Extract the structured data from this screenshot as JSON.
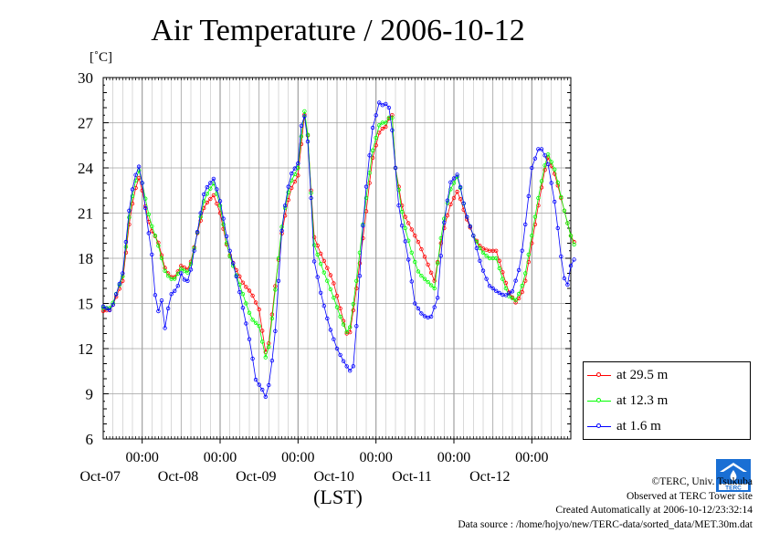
{
  "title": "Air Temperature / 2006-10-12",
  "unit_label": "[˚C]",
  "x_axis_title": "(LST)",
  "footer": {
    "copyright": "©TERC, Univ. Tsukuba",
    "observed": "Observed at TERC Tower site",
    "created": "Created Automatically at 2006-10-12/23:32:14",
    "source": "Data source : /home/hojyo/new/TERC-data/sorted_data/MET.30m.dat"
  },
  "chart_data": {
    "type": "line",
    "title": "Air Temperature / 2006-10-12",
    "ylabel": "[˚C]",
    "xlabel": "(LST)",
    "ylim": [
      6,
      30
    ],
    "yticks": [
      6,
      9,
      12,
      15,
      18,
      21,
      24,
      27,
      30
    ],
    "x_unit": "days since 2006-10-06 00:00 LST",
    "xlim": [
      0.5,
      6.5
    ],
    "xticks": [
      {
        "x": 1,
        "time": "00:00",
        "date": "Oct-07"
      },
      {
        "x": 2,
        "time": "00:00",
        "date": "Oct-08"
      },
      {
        "x": 3,
        "time": "00:00",
        "date": "Oct-09"
      },
      {
        "x": 4,
        "time": "00:00",
        "date": "Oct-10"
      },
      {
        "x": 5,
        "time": "00:00",
        "date": "Oct-11"
      },
      {
        "x": 6,
        "time": "00:00",
        "date": "Oct-12"
      }
    ],
    "grid": true,
    "legend_position": "bottom-right outside",
    "series": [
      {
        "name": "at 29.5 m",
        "color": "#ff0000",
        "points": [
          [
            0.5,
            14.5
          ],
          [
            0.6,
            14.6
          ],
          [
            0.75,
            16.5
          ],
          [
            0.85,
            21
          ],
          [
            0.95,
            23.5
          ],
          [
            1.0,
            22.5
          ],
          [
            1.1,
            20
          ],
          [
            1.2,
            19.2
          ],
          [
            1.3,
            17.2
          ],
          [
            1.4,
            16.6
          ],
          [
            1.5,
            17.5
          ],
          [
            1.6,
            17.2
          ],
          [
            1.7,
            19.5
          ],
          [
            1.8,
            21.5
          ],
          [
            1.92,
            22.2
          ],
          [
            2.0,
            21
          ],
          [
            2.1,
            18.5
          ],
          [
            2.2,
            17.3
          ],
          [
            2.3,
            16.3
          ],
          [
            2.4,
            15.7
          ],
          [
            2.5,
            14.6
          ],
          [
            2.6,
            11.2
          ],
          [
            2.7,
            15.8
          ],
          [
            2.8,
            20
          ],
          [
            2.9,
            22.5
          ],
          [
            3.0,
            23.5
          ],
          [
            3.05,
            26
          ],
          [
            3.1,
            28.3
          ],
          [
            3.15,
            24
          ],
          [
            3.2,
            19.5
          ],
          [
            3.3,
            18.2
          ],
          [
            3.45,
            16.5
          ],
          [
            3.55,
            14.5
          ],
          [
            3.65,
            12.5
          ],
          [
            3.75,
            16
          ],
          [
            3.85,
            20
          ],
          [
            3.95,
            24.5
          ],
          [
            4.05,
            26.5
          ],
          [
            4.15,
            26.8
          ],
          [
            4.2,
            28.2
          ],
          [
            4.25,
            24
          ],
          [
            4.35,
            21
          ],
          [
            4.45,
            20
          ],
          [
            4.55,
            19
          ],
          [
            4.65,
            17.8
          ],
          [
            4.75,
            16.5
          ],
          [
            4.85,
            19.5
          ],
          [
            4.95,
            21.5
          ],
          [
            5.05,
            22.5
          ],
          [
            5.15,
            20.8
          ],
          [
            5.25,
            19.5
          ],
          [
            5.35,
            18.7
          ],
          [
            5.45,
            18.5
          ],
          [
            5.55,
            18.5
          ],
          [
            5.6,
            17.5
          ],
          [
            5.7,
            15.8
          ],
          [
            5.8,
            15
          ],
          [
            5.9,
            16
          ],
          [
            6.0,
            19
          ],
          [
            6.1,
            22
          ],
          [
            6.2,
            24.8
          ],
          [
            6.3,
            23.5
          ],
          [
            6.4,
            21.5
          ],
          [
            6.5,
            19.5
          ],
          [
            6.55,
            19
          ]
        ]
      },
      {
        "name": "at 12.3 m",
        "color": "#00ff00",
        "points": [
          [
            0.5,
            14.7
          ],
          [
            0.6,
            14.7
          ],
          [
            0.75,
            16.8
          ],
          [
            0.85,
            21.5
          ],
          [
            0.95,
            24
          ],
          [
            1.0,
            23
          ],
          [
            1.1,
            20.5
          ],
          [
            1.2,
            19
          ],
          [
            1.3,
            17
          ],
          [
            1.4,
            16.5
          ],
          [
            1.5,
            17.3
          ],
          [
            1.6,
            17
          ],
          [
            1.7,
            19.5
          ],
          [
            1.8,
            22
          ],
          [
            1.92,
            23
          ],
          [
            2.0,
            21.5
          ],
          [
            2.1,
            18.5
          ],
          [
            2.2,
            17
          ],
          [
            2.3,
            15.5
          ],
          [
            2.4,
            14
          ],
          [
            2.5,
            13.5
          ],
          [
            2.6,
            11
          ],
          [
            2.7,
            15.5
          ],
          [
            2.8,
            20.5
          ],
          [
            2.9,
            23
          ],
          [
            3.0,
            24
          ],
          [
            3.05,
            26.5
          ],
          [
            3.1,
            28.4
          ],
          [
            3.15,
            24
          ],
          [
            3.2,
            19
          ],
          [
            3.3,
            17.5
          ],
          [
            3.45,
            15.5
          ],
          [
            3.55,
            14
          ],
          [
            3.65,
            12.8
          ],
          [
            3.75,
            16.5
          ],
          [
            3.85,
            21
          ],
          [
            3.95,
            25
          ],
          [
            4.05,
            27
          ],
          [
            4.15,
            27
          ],
          [
            4.2,
            28
          ],
          [
            4.25,
            24
          ],
          [
            4.35,
            20.5
          ],
          [
            4.45,
            18.5
          ],
          [
            4.55,
            17
          ],
          [
            4.65,
            16.5
          ],
          [
            4.75,
            16
          ],
          [
            4.85,
            20
          ],
          [
            4.95,
            22.5
          ],
          [
            5.05,
            23.5
          ],
          [
            5.15,
            21
          ],
          [
            5.25,
            19.5
          ],
          [
            5.35,
            18.5
          ],
          [
            5.45,
            18
          ],
          [
            5.55,
            18
          ],
          [
            5.6,
            17
          ],
          [
            5.7,
            15.5
          ],
          [
            5.8,
            15.2
          ],
          [
            5.9,
            16.5
          ],
          [
            6.0,
            19.5
          ],
          [
            6.1,
            22.5
          ],
          [
            6.2,
            25
          ],
          [
            6.3,
            23.8
          ],
          [
            6.4,
            21.5
          ],
          [
            6.5,
            19.5
          ],
          [
            6.55,
            18.8
          ]
        ]
      },
      {
        "name": "at 1.6 m",
        "color": "#0000ff",
        "points": [
          [
            0.5,
            14.8
          ],
          [
            0.6,
            14.5
          ],
          [
            0.75,
            17
          ],
          [
            0.85,
            22
          ],
          [
            0.95,
            24.3
          ],
          [
            1.0,
            23
          ],
          [
            1.05,
            21
          ],
          [
            1.1,
            19
          ],
          [
            1.15,
            17.5
          ],
          [
            1.18,
            14
          ],
          [
            1.25,
            15.2
          ],
          [
            1.3,
            13
          ],
          [
            1.35,
            15.5
          ],
          [
            1.45,
            16
          ],
          [
            1.5,
            17
          ],
          [
            1.55,
            16.5
          ],
          [
            1.6,
            16.5
          ],
          [
            1.7,
            19.5
          ],
          [
            1.8,
            22.5
          ],
          [
            1.92,
            23.3
          ],
          [
            2.0,
            21.8
          ],
          [
            2.1,
            19
          ],
          [
            2.2,
            17
          ],
          [
            2.3,
            14.5
          ],
          [
            2.4,
            12
          ],
          [
            2.45,
            10
          ],
          [
            2.55,
            9.2
          ],
          [
            2.6,
            8.6
          ],
          [
            2.7,
            12.5
          ],
          [
            2.8,
            20.5
          ],
          [
            2.9,
            23.5
          ],
          [
            3.0,
            24.3
          ],
          [
            3.05,
            27.3
          ],
          [
            3.1,
            27.5
          ],
          [
            3.15,
            24
          ],
          [
            3.2,
            18
          ],
          [
            3.3,
            15.5
          ],
          [
            3.4,
            13.5
          ],
          [
            3.5,
            12
          ],
          [
            3.6,
            11
          ],
          [
            3.7,
            10.3
          ],
          [
            3.75,
            13.5
          ],
          [
            3.85,
            21.5
          ],
          [
            3.95,
            26.5
          ],
          [
            4.05,
            28.5
          ],
          [
            4.1,
            28
          ],
          [
            4.15,
            28.5
          ],
          [
            4.2,
            27
          ],
          [
            4.25,
            24
          ],
          [
            4.3,
            21
          ],
          [
            4.4,
            18.5
          ],
          [
            4.5,
            15
          ],
          [
            4.6,
            14.2
          ],
          [
            4.7,
            14.0
          ],
          [
            4.8,
            15.5
          ],
          [
            4.85,
            19.5
          ],
          [
            4.95,
            23
          ],
          [
            5.05,
            23.6
          ],
          [
            5.15,
            21
          ],
          [
            5.25,
            19.5
          ],
          [
            5.35,
            17.5
          ],
          [
            5.45,
            16.2
          ],
          [
            5.55,
            15.8
          ],
          [
            5.65,
            15.5
          ],
          [
            5.75,
            15.8
          ],
          [
            5.85,
            17.5
          ],
          [
            5.9,
            19.5
          ],
          [
            6.0,
            24
          ],
          [
            6.1,
            25.5
          ],
          [
            6.2,
            24.5
          ],
          [
            6.3,
            21.5
          ],
          [
            6.4,
            17
          ],
          [
            6.45,
            16
          ],
          [
            6.5,
            17.5
          ],
          [
            6.55,
            18
          ]
        ]
      }
    ]
  },
  "colors": {
    "grid": "#a0a0a0",
    "axis": "#000000",
    "logo": "#1a6fd4"
  }
}
